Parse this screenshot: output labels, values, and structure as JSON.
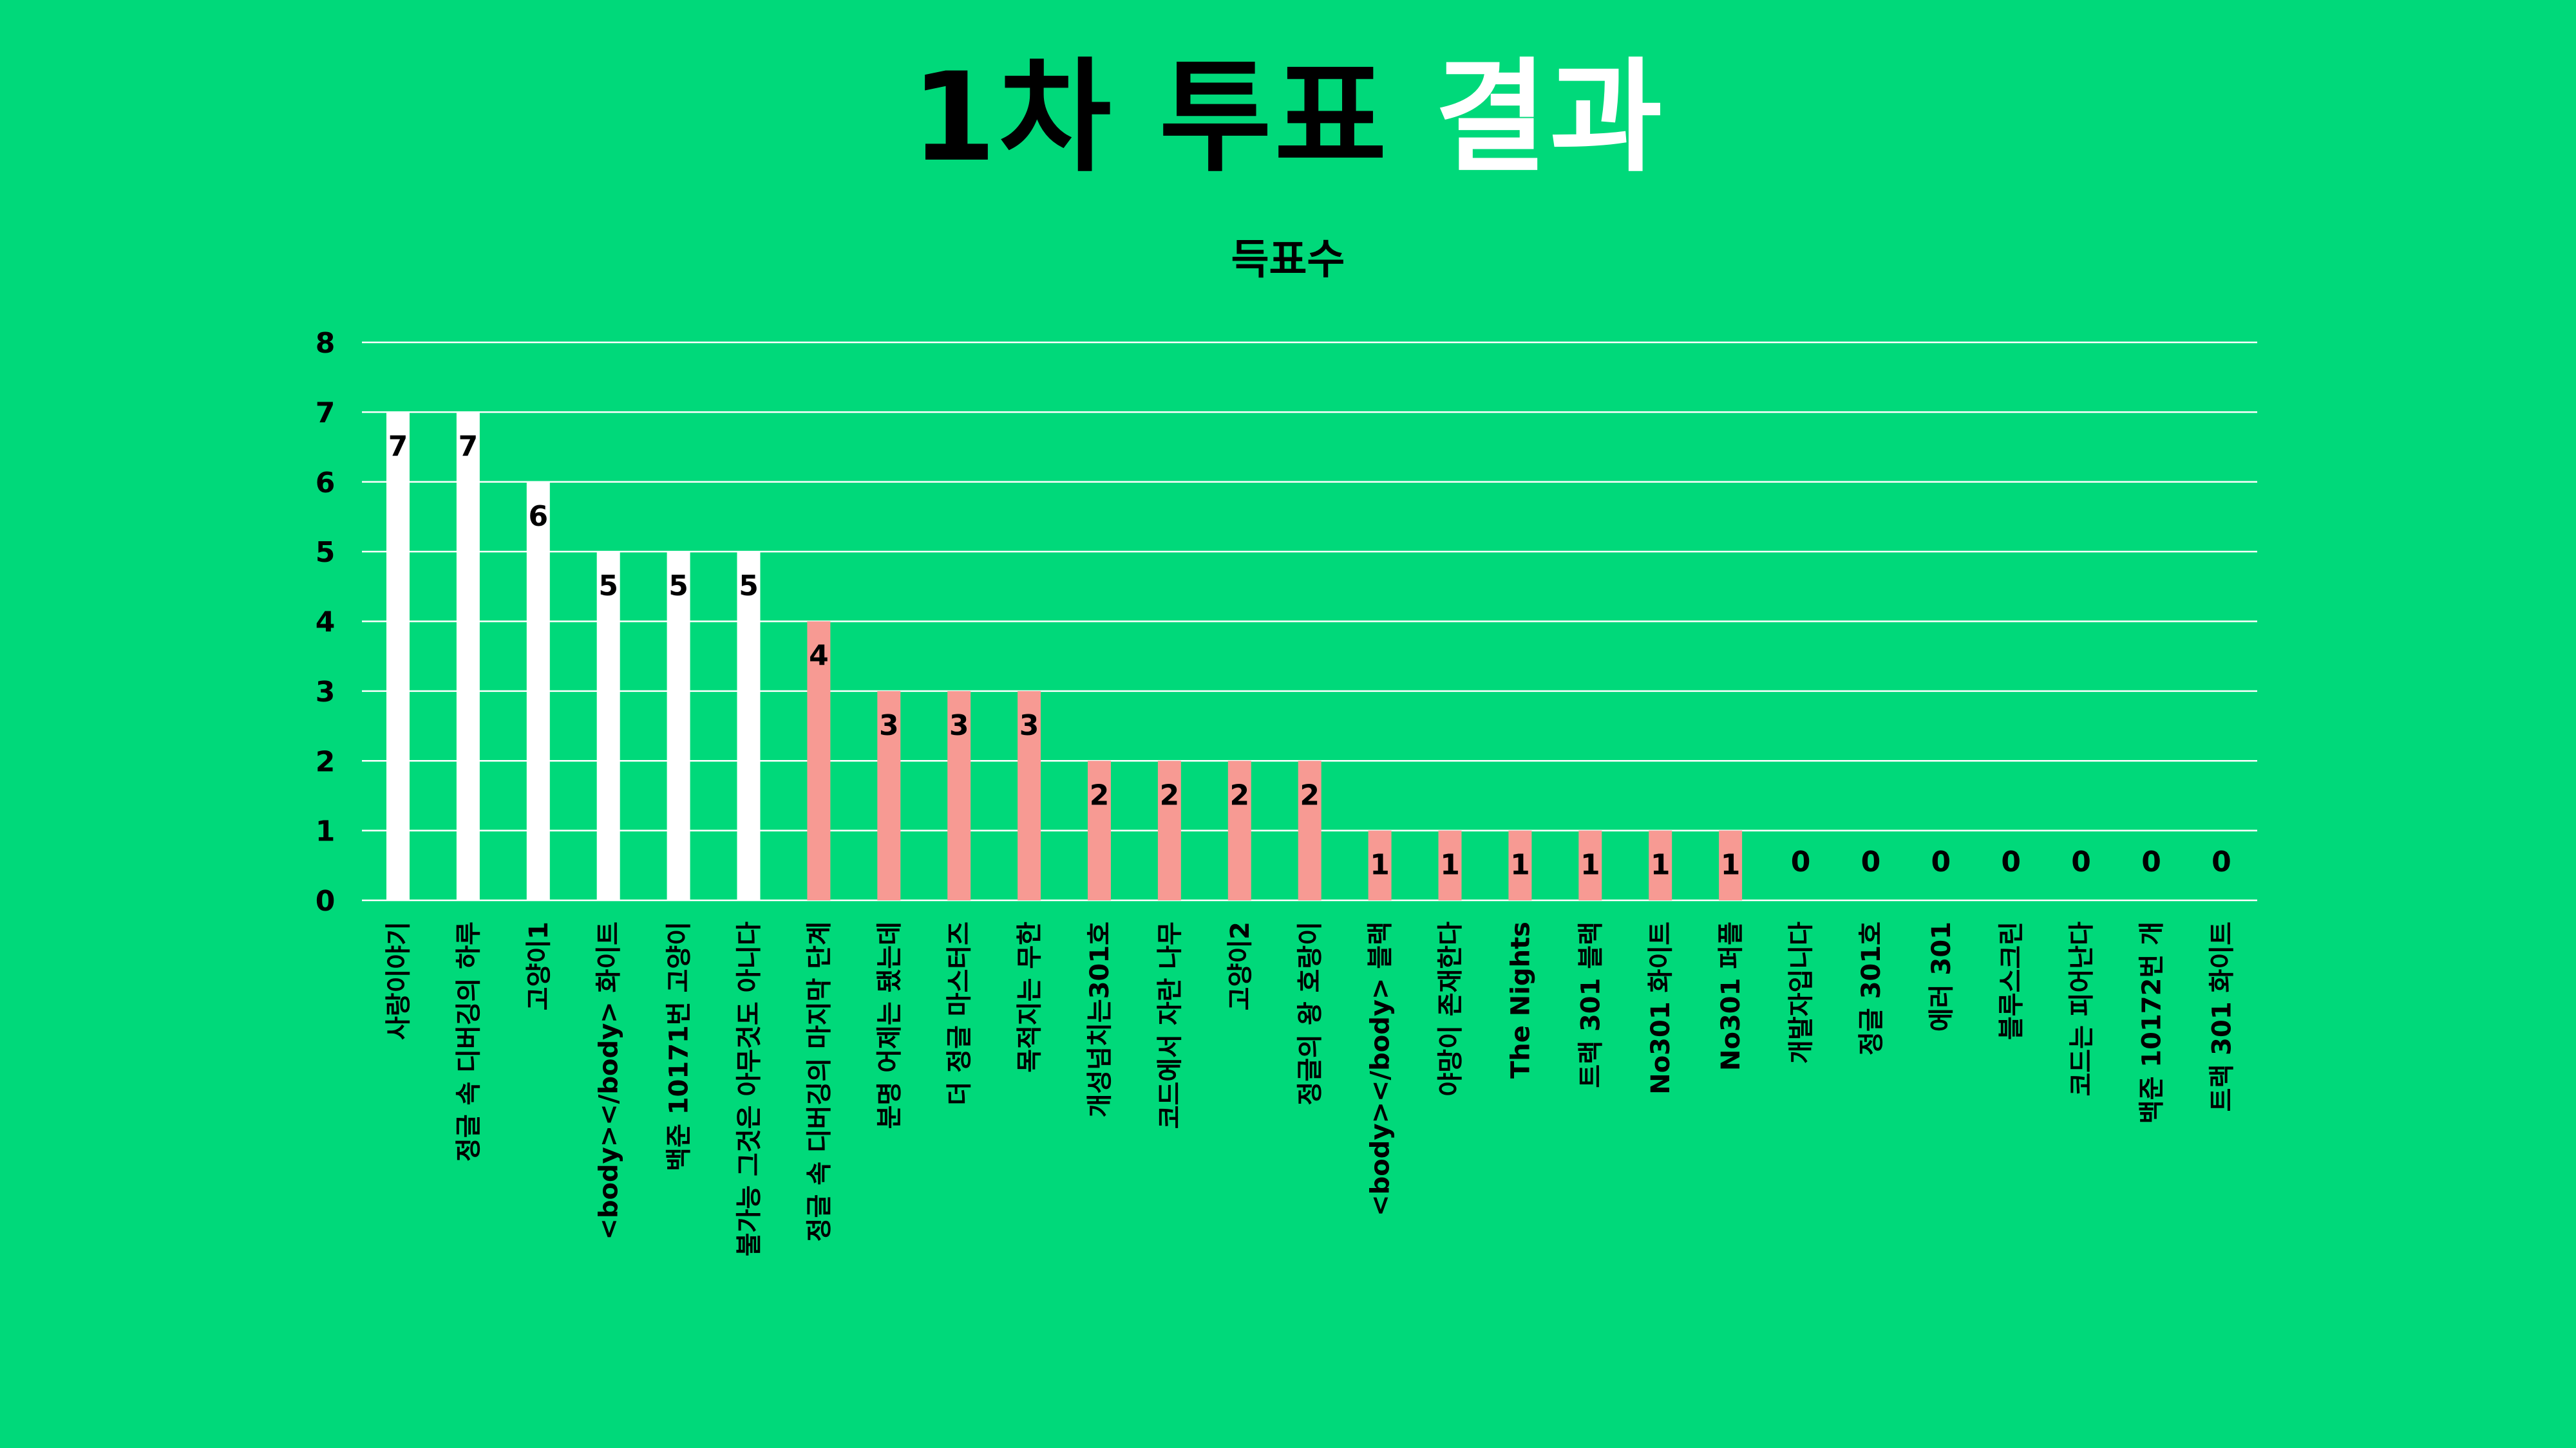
{
  "title": {
    "part1": "1차 투표",
    "part2": "결과"
  },
  "colors": {
    "background": "#00d97a",
    "bar_top": "#ffffff",
    "bar_mid": "#f79a93",
    "grid": "#ffffff",
    "text": "#000000"
  },
  "chart_data": {
    "type": "bar",
    "title": "득표수",
    "ylim": [
      0,
      8
    ],
    "yticks": [
      0,
      1,
      2,
      3,
      4,
      5,
      6,
      7,
      8
    ],
    "grid": true,
    "legend": "none",
    "categories": [
      "사랑이야기",
      "정글 속 디버깅의 하루",
      "고양이1",
      "<body></body> 화이트",
      "백준 10171번 고양이",
      "불가능 그것은 아무것도 아니다",
      "정글 속 디버깅의 마지막 단계",
      "분명 어제는 됐는데",
      "더 정글 마스터즈",
      "목적지는 무한",
      "개성넘치는301호",
      "코드에서 자란 나무",
      "고양이2",
      "정글의 왕 호랑이",
      "<body></body> 블랙",
      "야망이 존재한다",
      "The Nights",
      "트랙 301 블랙",
      "No301 화이트",
      "No301 퍼플",
      "개발자입니다",
      "정글 301호",
      "에러 301",
      "블루스크린",
      "코드는 피어난다",
      "백준 10172번 개",
      "트랙 301 화이트"
    ],
    "values": [
      7,
      7,
      6,
      5,
      5,
      5,
      4,
      3,
      3,
      3,
      2,
      2,
      2,
      2,
      1,
      1,
      1,
      1,
      1,
      1,
      0,
      0,
      0,
      0,
      0,
      0,
      0
    ],
    "bar_colors": [
      "#ffffff",
      "#ffffff",
      "#ffffff",
      "#ffffff",
      "#ffffff",
      "#ffffff",
      "#f79a93",
      "#f79a93",
      "#f79a93",
      "#f79a93",
      "#f79a93",
      "#f79a93",
      "#f79a93",
      "#f79a93",
      "#f79a93",
      "#f79a93",
      "#f79a93",
      "#f79a93",
      "#f79a93",
      "#f79a93",
      "#f79a93",
      "#f79a93",
      "#f79a93",
      "#f79a93",
      "#f79a93",
      "#f79a93",
      "#f79a93"
    ]
  }
}
